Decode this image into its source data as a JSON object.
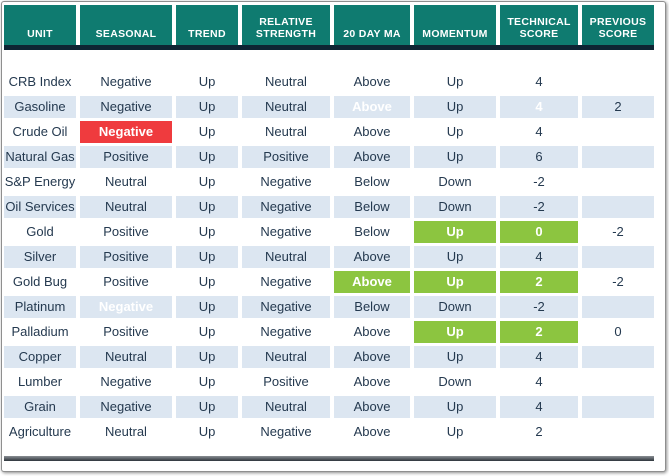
{
  "chart_data": {
    "type": "table",
    "columns": [
      "UNIT",
      "SEASONAL",
      "TREND",
      "RELATIVE STRENGTH",
      "20 DAY MA",
      "MOMENTUM",
      "TECHNICAL SCORE",
      "PREVIOUS SCORE"
    ],
    "column_keys": [
      "unit",
      "seasonal",
      "trend",
      "relative-strength",
      "20-day-ma",
      "momentum",
      "technical-score",
      "previous-score"
    ],
    "rows": [
      {
        "cells": [
          {
            "t": "CRB Index"
          },
          {
            "t": "Negative"
          },
          {
            "t": "Up"
          },
          {
            "t": "Neutral"
          },
          {
            "t": "Above"
          },
          {
            "t": "Up"
          },
          {
            "t": "4"
          },
          {
            "t": ""
          }
        ]
      },
      {
        "cells": [
          {
            "t": "Gasoline"
          },
          {
            "t": "Negative"
          },
          {
            "t": "Up"
          },
          {
            "t": "Neutral"
          },
          {
            "t": "Above",
            "h": "green"
          },
          {
            "t": "Up"
          },
          {
            "t": "4",
            "h": "green"
          },
          {
            "t": "2"
          }
        ]
      },
      {
        "cells": [
          {
            "t": "Crude Oil"
          },
          {
            "t": "Negative",
            "h": "red"
          },
          {
            "t": "Up"
          },
          {
            "t": "Neutral"
          },
          {
            "t": "Above"
          },
          {
            "t": "Up"
          },
          {
            "t": "4"
          },
          {
            "t": ""
          }
        ]
      },
      {
        "cells": [
          {
            "t": "Natural Gas"
          },
          {
            "t": "Positive"
          },
          {
            "t": "Up"
          },
          {
            "t": "Positive"
          },
          {
            "t": "Above"
          },
          {
            "t": "Up"
          },
          {
            "t": "6"
          },
          {
            "t": ""
          }
        ]
      },
      {
        "cells": [
          {
            "t": "S&P Energy"
          },
          {
            "t": "Neutral"
          },
          {
            "t": "Up"
          },
          {
            "t": "Negative"
          },
          {
            "t": "Below"
          },
          {
            "t": "Down"
          },
          {
            "t": "-2"
          },
          {
            "t": ""
          }
        ]
      },
      {
        "cells": [
          {
            "t": "Oil Services"
          },
          {
            "t": "Neutral"
          },
          {
            "t": "Up"
          },
          {
            "t": "Negative"
          },
          {
            "t": "Below"
          },
          {
            "t": "Down"
          },
          {
            "t": "-2"
          },
          {
            "t": ""
          }
        ]
      },
      {
        "cells": [
          {
            "t": "Gold"
          },
          {
            "t": "Positive"
          },
          {
            "t": "Up"
          },
          {
            "t": "Negative"
          },
          {
            "t": "Below"
          },
          {
            "t": "Up",
            "h": "green"
          },
          {
            "t": "0",
            "h": "green"
          },
          {
            "t": "-2"
          }
        ]
      },
      {
        "cells": [
          {
            "t": "Silver"
          },
          {
            "t": "Positive"
          },
          {
            "t": "Up"
          },
          {
            "t": "Neutral"
          },
          {
            "t": "Above"
          },
          {
            "t": "Up"
          },
          {
            "t": "4"
          },
          {
            "t": ""
          }
        ]
      },
      {
        "cells": [
          {
            "t": "Gold Bug"
          },
          {
            "t": "Positive"
          },
          {
            "t": "Up"
          },
          {
            "t": "Negative"
          },
          {
            "t": "Above",
            "h": "green"
          },
          {
            "t": "Up",
            "h": "green"
          },
          {
            "t": "2",
            "h": "green"
          },
          {
            "t": "-2"
          }
        ]
      },
      {
        "cells": [
          {
            "t": "Platinum"
          },
          {
            "t": "Negative",
            "h": "red"
          },
          {
            "t": "Up"
          },
          {
            "t": "Negative"
          },
          {
            "t": "Below"
          },
          {
            "t": "Down"
          },
          {
            "t": "-2"
          },
          {
            "t": ""
          }
        ]
      },
      {
        "cells": [
          {
            "t": "Palladium"
          },
          {
            "t": "Positive"
          },
          {
            "t": "Up"
          },
          {
            "t": "Negative"
          },
          {
            "t": "Above"
          },
          {
            "t": "Up",
            "h": "green"
          },
          {
            "t": "2",
            "h": "green"
          },
          {
            "t": "0"
          }
        ]
      },
      {
        "cells": [
          {
            "t": "Copper"
          },
          {
            "t": "Neutral"
          },
          {
            "t": "Up"
          },
          {
            "t": "Neutral"
          },
          {
            "t": "Above"
          },
          {
            "t": "Up"
          },
          {
            "t": "4"
          },
          {
            "t": ""
          }
        ]
      },
      {
        "cells": [
          {
            "t": "Lumber"
          },
          {
            "t": "Negative"
          },
          {
            "t": "Up"
          },
          {
            "t": "Positive"
          },
          {
            "t": "Above"
          },
          {
            "t": "Down"
          },
          {
            "t": "4"
          },
          {
            "t": ""
          }
        ]
      },
      {
        "cells": [
          {
            "t": "Grain"
          },
          {
            "t": "Negative"
          },
          {
            "t": "Up"
          },
          {
            "t": "Neutral"
          },
          {
            "t": "Above"
          },
          {
            "t": "Up"
          },
          {
            "t": "4"
          },
          {
            "t": ""
          }
        ]
      },
      {
        "cells": [
          {
            "t": "Agriculture"
          },
          {
            "t": "Neutral"
          },
          {
            "t": "Up"
          },
          {
            "t": "Negative"
          },
          {
            "t": "Above"
          },
          {
            "t": "Up"
          },
          {
            "t": "2"
          },
          {
            "t": ""
          }
        ]
      }
    ]
  },
  "colors": {
    "header_bg": "#0F7B70",
    "header_text": "#FFFFFF",
    "divider": "#0E2433",
    "row_bg": "#FFFFFF",
    "row_alt_bg": "#DCE6F1",
    "highlight_green": "#8CC540",
    "highlight_red": "#EF3B3E",
    "highlight_text": "#FFFFFF",
    "body_text": "#24394F"
  }
}
